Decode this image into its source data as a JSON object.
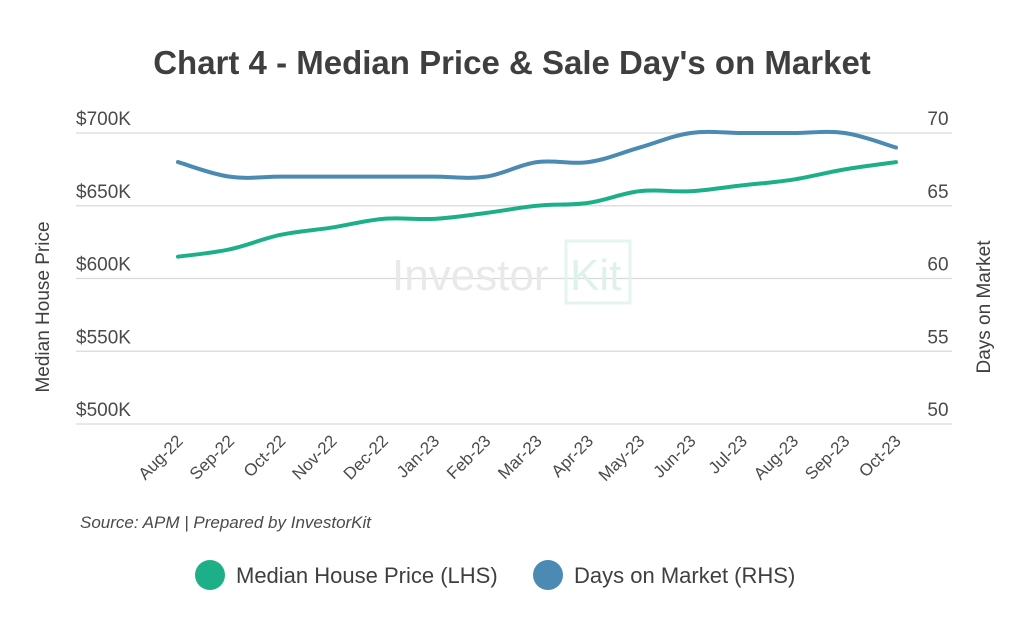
{
  "chart_data": {
    "type": "line",
    "title": "Chart 4 - Median Price & Sale Day's on Market",
    "categories": [
      "Aug-22",
      "Sep-22",
      "Oct-22",
      "Nov-22",
      "Dec-22",
      "Jan-23",
      "Feb-23",
      "Mar-23",
      "Apr-23",
      "May-23",
      "Jun-23",
      "Jul-23",
      "Aug-23",
      "Sep-23",
      "Oct-23"
    ],
    "ylabel_left": "Median House Price",
    "ylabel_right": "Days on Market",
    "ylim_left": [
      500,
      700
    ],
    "ylim_right": [
      50,
      70
    ],
    "yticks_left": [
      {
        "value": 700,
        "label": "$700K"
      },
      {
        "value": 650,
        "label": "$650K"
      },
      {
        "value": 600,
        "label": "$600K"
      },
      {
        "value": 550,
        "label": "$550K"
      },
      {
        "value": 500,
        "label": "$500K"
      }
    ],
    "yticks_right": [
      {
        "value": 70,
        "label": "70"
      },
      {
        "value": 65,
        "label": "65"
      },
      {
        "value": 60,
        "label": "60"
      },
      {
        "value": 55,
        "label": "55"
      },
      {
        "value": 50,
        "label": "50"
      }
    ],
    "series": [
      {
        "name": "Median House Price (LHS)",
        "axis": "left",
        "color": "#1db088",
        "values": [
          615,
          620,
          630,
          635,
          641,
          641,
          645,
          650,
          652,
          660,
          660,
          664,
          668,
          675,
          680
        ]
      },
      {
        "name": "Days on Market (RHS)",
        "axis": "right",
        "color": "#4a8ab3",
        "values": [
          68,
          67,
          67,
          67,
          67,
          67,
          67,
          68,
          68,
          69,
          70,
          70,
          70,
          70,
          69
        ]
      }
    ],
    "grid": true,
    "legend": "bottom"
  },
  "source_note": "Source: APM | Prepared by InvestorKit",
  "watermark": {
    "brand": "Investor",
    "brand_suffix": "Kit"
  }
}
